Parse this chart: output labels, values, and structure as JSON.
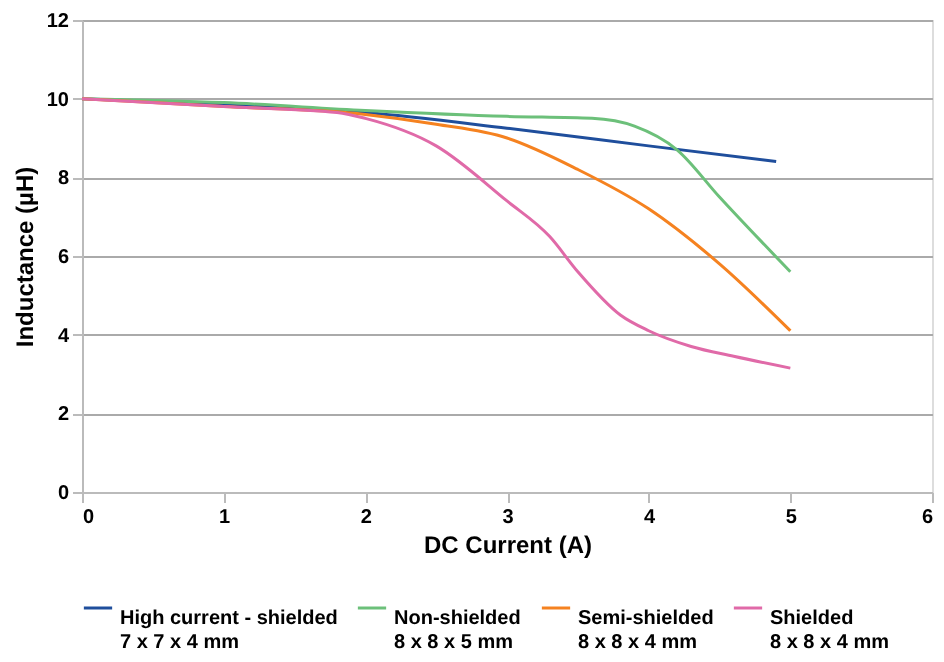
{
  "chart_data": {
    "type": "line",
    "xlabel": "DC Current (A)",
    "ylabel": "Inductance (µH)",
    "xlim": [
      0,
      6
    ],
    "xticks": [
      0,
      1,
      2,
      3,
      4,
      5,
      6
    ],
    "ylim": [
      0,
      12
    ],
    "yticks": [
      0,
      2,
      4,
      6,
      8,
      10,
      12
    ],
    "grid": "y",
    "legend": "bottom",
    "marker": "none",
    "line_style": "solid",
    "series": [
      {
        "name": "High current - shielded\n7 x 7 x 4 mm",
        "color": "#1f4e9c",
        "x": [
          0,
          1,
          2,
          3,
          4,
          4.9
        ],
        "values": [
          10,
          9.85,
          9.65,
          9.25,
          8.8,
          8.4
        ]
      },
      {
        "name": "Non-shielded\n8 x 8 x 5 mm",
        "color": "#6cc07a",
        "x": [
          0,
          1,
          2,
          3,
          3.6,
          3.9,
          4.2,
          4.5,
          5
        ],
        "values": [
          10,
          9.9,
          9.7,
          9.55,
          9.5,
          9.3,
          8.7,
          7.5,
          5.6
        ]
      },
      {
        "name": "Semi-shielded\n8 x 8 x 4 mm",
        "color": "#f58220",
        "x": [
          0,
          1,
          2,
          2.5,
          3,
          3.5,
          4,
          4.5,
          5
        ],
        "values": [
          10,
          9.8,
          9.6,
          9.35,
          9.0,
          8.2,
          7.2,
          5.8,
          4.1
        ]
      },
      {
        "name": "Shielded\n8 x 8 x 4 mm",
        "color": "#e06aa8",
        "x": [
          0,
          1,
          1.8,
          2,
          2.5,
          3,
          3.3,
          3.5,
          3.8,
          4,
          4.3,
          4.6,
          5
        ],
        "values": [
          10,
          9.8,
          9.65,
          9.5,
          8.8,
          7.4,
          6.5,
          5.6,
          4.5,
          4.1,
          3.7,
          3.45,
          3.15
        ]
      }
    ]
  }
}
